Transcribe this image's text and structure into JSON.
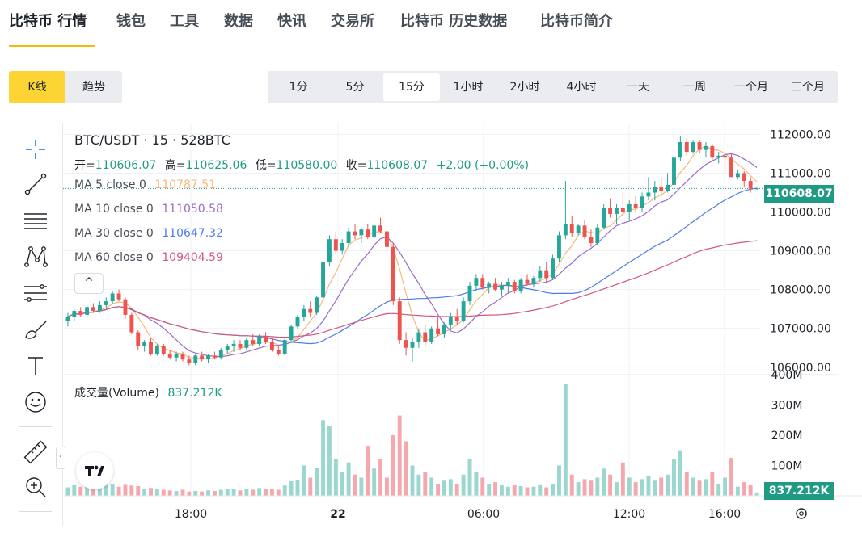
{
  "nav": {
    "tabs": [
      "比特币 行情",
      "钱包",
      "工具",
      "数据",
      "快讯",
      "交易所",
      "比特币 历史数据",
      "比特币简介"
    ],
    "active_index": 0
  },
  "mode": {
    "buttons": [
      "K线",
      "趋势"
    ],
    "active_index": 0
  },
  "intervals": {
    "buttons": [
      "1分",
      "5分",
      "15分",
      "1小时",
      "2小时",
      "4小时",
      "一天",
      "一周",
      "一个月",
      "三个月"
    ],
    "active_index": 2
  },
  "toolbar": {
    "tools": [
      "crosshair-icon",
      "trend-line-icon",
      "horizontal-lines-icon",
      "pattern-icon",
      "fib-icon",
      "brush-icon",
      "text-icon",
      "emoji-icon",
      "ruler-icon",
      "zoom-in-icon"
    ]
  },
  "legend": {
    "symbol_line": "BTC/USDT · 15 · 528BTC",
    "ohlc": {
      "open_label": "开=",
      "open": "110606.07",
      "high_label": "高=",
      "high": "110625.06",
      "low_label": "低=",
      "low": "110580.00",
      "close_label": "收=",
      "close": "110608.07",
      "change": "+2.00 (+0.00%)"
    },
    "ma": [
      {
        "label": "MA 5 close 0",
        "value": "110787.51",
        "color": "#f5b97e"
      },
      {
        "label": "MA 10 close 0",
        "value": "111050.58",
        "color": "#9b6bc6"
      },
      {
        "label": "MA 30 close 0",
        "value": "110647.32",
        "color": "#4d7de6"
      },
      {
        "label": "MA 60 close 0",
        "value": "109404.59",
        "color": "#d4587a"
      }
    ],
    "collapse_symbol": "^",
    "volume_label": "成交量(Volume)",
    "volume_value": "837.212K"
  },
  "colors": {
    "up": "#26a69a",
    "down": "#ef5350",
    "up_vol": "#9ad7cf",
    "down_vol": "#f5a7ad",
    "accent": "#fcd535"
  },
  "chart_data": {
    "type": "candlestick",
    "price_axis": {
      "ticks": [
        "112000.00",
        "111000.00",
        "110000.00",
        "109000.00",
        "108000.00",
        "107000.00",
        "106000.00"
      ],
      "range": [
        105850,
        112300
      ]
    },
    "current_price": "110608.07",
    "volume_axis": {
      "ticks": [
        "400M",
        "300M",
        "200M",
        "100M"
      ],
      "max": 400
    },
    "volume_current": "837.212K",
    "time_ticks": [
      "18:00",
      "22",
      "06:00",
      "12:00",
      "16:00"
    ],
    "candles": [
      [
        107200,
        107400,
        107050,
        107300
      ],
      [
        107300,
        107500,
        107200,
        107450
      ],
      [
        107450,
        107550,
        107300,
        107350
      ],
      [
        107350,
        107600,
        107300,
        107550
      ],
      [
        107550,
        107650,
        107400,
        107450
      ],
      [
        107450,
        107700,
        107400,
        107600
      ],
      [
        107600,
        107800,
        107500,
        107700
      ],
      [
        107700,
        107950,
        107650,
        107900
      ],
      [
        107900,
        108000,
        107700,
        107750
      ],
      [
        107750,
        107800,
        107250,
        107350
      ],
      [
        107350,
        107400,
        106850,
        106900
      ],
      [
        106900,
        106950,
        106450,
        106550
      ],
      [
        106550,
        106700,
        106400,
        106650
      ],
      [
        106650,
        106750,
        106300,
        106350
      ],
      [
        106350,
        106600,
        106300,
        106550
      ],
      [
        106550,
        106600,
        106300,
        106350
      ],
      [
        106350,
        106450,
        106200,
        106250
      ],
      [
        106250,
        106400,
        106150,
        106350
      ],
      [
        106350,
        106400,
        106150,
        106200
      ],
      [
        106200,
        106300,
        106050,
        106100
      ],
      [
        106100,
        106350,
        106050,
        106300
      ],
      [
        106300,
        106400,
        106150,
        106200
      ],
      [
        106200,
        106350,
        106100,
        106300
      ],
      [
        106300,
        106400,
        106200,
        106250
      ],
      [
        106250,
        106500,
        106200,
        106450
      ],
      [
        106450,
        106600,
        106350,
        106550
      ],
      [
        106550,
        106700,
        106400,
        106600
      ],
      [
        106600,
        106700,
        106450,
        106500
      ],
      [
        106500,
        106750,
        106450,
        106700
      ],
      [
        106700,
        106850,
        106550,
        106600
      ],
      [
        106600,
        106850,
        106550,
        106800
      ],
      [
        106800,
        106900,
        106600,
        106650
      ],
      [
        106650,
        106750,
        106400,
        106450
      ],
      [
        106450,
        106550,
        106300,
        106350
      ],
      [
        106350,
        106750,
        106300,
        106700
      ],
      [
        106700,
        107100,
        106650,
        107050
      ],
      [
        107050,
        107350,
        107000,
        107300
      ],
      [
        107300,
        107600,
        107200,
        107500
      ],
      [
        107500,
        107700,
        107300,
        107400
      ],
      [
        107400,
        107850,
        107350,
        107800
      ],
      [
        107800,
        108800,
        107700,
        108700
      ],
      [
        108700,
        109400,
        108600,
        109300
      ],
      [
        109300,
        109500,
        108900,
        109000
      ],
      [
        109000,
        109300,
        108900,
        109200
      ],
      [
        109200,
        109600,
        109100,
        109500
      ],
      [
        109500,
        109700,
        109300,
        109400
      ],
      [
        109400,
        109600,
        109200,
        109550
      ],
      [
        109550,
        109700,
        109300,
        109350
      ],
      [
        109350,
        109700,
        109300,
        109650
      ],
      [
        109650,
        109850,
        109450,
        109500
      ],
      [
        109500,
        109550,
        109000,
        109100
      ],
      [
        109100,
        109200,
        107600,
        107700
      ],
      [
        107700,
        107800,
        106600,
        106700
      ],
      [
        106700,
        106900,
        106300,
        106500
      ],
      [
        106500,
        106750,
        106150,
        106650
      ],
      [
        106650,
        107000,
        106500,
        106900
      ],
      [
        106900,
        107100,
        106550,
        106650
      ],
      [
        106650,
        107050,
        106600,
        107000
      ],
      [
        107000,
        107300,
        106800,
        106850
      ],
      [
        106850,
        107150,
        106750,
        107100
      ],
      [
        107100,
        107400,
        106950,
        107300
      ],
      [
        107300,
        107500,
        107100,
        107200
      ],
      [
        107200,
        107800,
        107150,
        107700
      ],
      [
        107700,
        108200,
        107600,
        108100
      ],
      [
        108100,
        108400,
        107950,
        108300
      ],
      [
        108300,
        108400,
        108000,
        108050
      ],
      [
        108050,
        108200,
        107900,
        108150
      ],
      [
        108150,
        108300,
        107950,
        108000
      ],
      [
        108000,
        108200,
        107850,
        108100
      ],
      [
        108100,
        108300,
        107900,
        108200
      ],
      [
        108200,
        108250,
        107900,
        107950
      ],
      [
        107950,
        108300,
        107900,
        108250
      ],
      [
        108250,
        108400,
        108100,
        108150
      ],
      [
        108150,
        108350,
        108050,
        108300
      ],
      [
        108300,
        108600,
        108200,
        108500
      ],
      [
        108500,
        108700,
        108200,
        108300
      ],
      [
        108300,
        108900,
        108250,
        108800
      ],
      [
        108800,
        109500,
        108700,
        109400
      ],
      [
        109400,
        110800,
        109300,
        109700
      ],
      [
        109700,
        109900,
        109350,
        109450
      ],
      [
        109450,
        109700,
        109400,
        109650
      ],
      [
        109650,
        109800,
        109300,
        109350
      ],
      [
        109350,
        109550,
        109100,
        109200
      ],
      [
        109200,
        109700,
        109150,
        109600
      ],
      [
        109600,
        110200,
        109550,
        110100
      ],
      [
        110100,
        110350,
        109850,
        109950
      ],
      [
        109950,
        110200,
        109700,
        110100
      ],
      [
        110100,
        110500,
        109900,
        110000
      ],
      [
        110000,
        110300,
        109800,
        110200
      ],
      [
        110200,
        110400,
        110000,
        110100
      ],
      [
        110100,
        110500,
        110000,
        110400
      ],
      [
        110400,
        110900,
        110300,
        110500
      ],
      [
        110500,
        110800,
        110300,
        110650
      ],
      [
        110650,
        110900,
        110400,
        110550
      ],
      [
        110550,
        111000,
        110500,
        110700
      ],
      [
        110700,
        111500,
        110650,
        111400
      ],
      [
        111400,
        111950,
        111300,
        111800
      ],
      [
        111800,
        111900,
        111450,
        111550
      ],
      [
        111550,
        111850,
        111500,
        111800
      ],
      [
        111800,
        111850,
        111500,
        111600
      ],
      [
        111600,
        111800,
        111400,
        111700
      ],
      [
        111700,
        111750,
        111300,
        111400
      ],
      [
        111400,
        111550,
        111250,
        111450
      ],
      [
        111450,
        111500,
        111000,
        111400
      ],
      [
        111400,
        111500,
        110900,
        110900
      ],
      [
        110900,
        111100,
        110850,
        111000
      ],
      [
        111000,
        111050,
        110650,
        110800
      ],
      [
        110800,
        110900,
        110500,
        110600
      ],
      [
        110606.07,
        110625.06,
        110580.0,
        110608.07
      ]
    ],
    "volumes": [
      [
        28,
        1
      ],
      [
        35,
        1
      ],
      [
        30,
        0
      ],
      [
        32,
        1
      ],
      [
        26,
        0
      ],
      [
        34,
        1
      ],
      [
        40,
        1
      ],
      [
        38,
        1
      ],
      [
        30,
        0
      ],
      [
        36,
        0
      ],
      [
        34,
        0
      ],
      [
        32,
        0
      ],
      [
        24,
        1
      ],
      [
        26,
        0
      ],
      [
        22,
        1
      ],
      [
        20,
        0
      ],
      [
        18,
        0
      ],
      [
        16,
        1
      ],
      [
        20,
        0
      ],
      [
        14,
        0
      ],
      [
        16,
        1
      ],
      [
        14,
        0
      ],
      [
        18,
        1
      ],
      [
        16,
        0
      ],
      [
        20,
        1
      ],
      [
        22,
        1
      ],
      [
        24,
        1
      ],
      [
        18,
        0
      ],
      [
        22,
        1
      ],
      [
        20,
        0
      ],
      [
        26,
        1
      ],
      [
        24,
        0
      ],
      [
        22,
        0
      ],
      [
        20,
        0
      ],
      [
        34,
        1
      ],
      [
        48,
        1
      ],
      [
        52,
        1
      ],
      [
        100,
        1
      ],
      [
        60,
        0
      ],
      [
        92,
        1
      ],
      [
        250,
        1
      ],
      [
        230,
        1
      ],
      [
        120,
        1
      ],
      [
        80,
        1
      ],
      [
        110,
        1
      ],
      [
        70,
        0
      ],
      [
        60,
        1
      ],
      [
        165,
        0
      ],
      [
        90,
        1
      ],
      [
        120,
        0
      ],
      [
        60,
        0
      ],
      [
        200,
        0
      ],
      [
        265,
        0
      ],
      [
        180,
        0
      ],
      [
        100,
        1
      ],
      [
        70,
        1
      ],
      [
        80,
        0
      ],
      [
        60,
        1
      ],
      [
        40,
        0
      ],
      [
        50,
        1
      ],
      [
        55,
        1
      ],
      [
        40,
        0
      ],
      [
        70,
        1
      ],
      [
        120,
        1
      ],
      [
        80,
        1
      ],
      [
        60,
        0
      ],
      [
        40,
        1
      ],
      [
        45,
        0
      ],
      [
        35,
        1
      ],
      [
        30,
        1
      ],
      [
        35,
        0
      ],
      [
        32,
        1
      ],
      [
        28,
        0
      ],
      [
        30,
        1
      ],
      [
        35,
        1
      ],
      [
        28,
        0
      ],
      [
        40,
        1
      ],
      [
        100,
        1
      ],
      [
        370,
        1
      ],
      [
        70,
        0
      ],
      [
        45,
        1
      ],
      [
        55,
        0
      ],
      [
        50,
        0
      ],
      [
        60,
        1
      ],
      [
        90,
        1
      ],
      [
        70,
        0
      ],
      [
        45,
        1
      ],
      [
        110,
        0
      ],
      [
        60,
        1
      ],
      [
        45,
        0
      ],
      [
        55,
        1
      ],
      [
        65,
        1
      ],
      [
        50,
        1
      ],
      [
        60,
        0
      ],
      [
        70,
        1
      ],
      [
        120,
        1
      ],
      [
        150,
        1
      ],
      [
        80,
        0
      ],
      [
        60,
        1
      ],
      [
        50,
        0
      ],
      [
        55,
        1
      ],
      [
        80,
        0
      ],
      [
        40,
        1
      ],
      [
        60,
        1
      ],
      [
        125,
        0
      ],
      [
        30,
        1
      ],
      [
        45,
        0
      ],
      [
        35,
        0
      ],
      [
        10,
        1
      ]
    ]
  }
}
